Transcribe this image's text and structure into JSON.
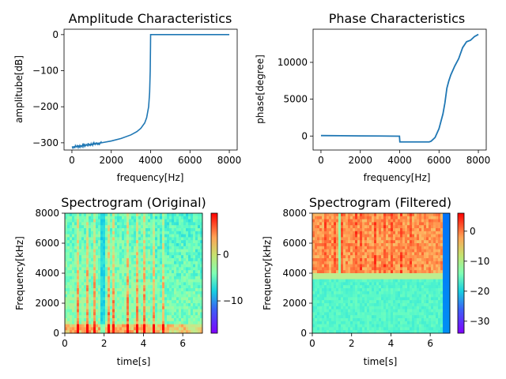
{
  "chart_data": [
    {
      "type": "line",
      "title": "Amplitude Characteristics",
      "xlabel": "frequency[Hz]",
      "ylabel": "amplitube[dB]",
      "xlim": [
        -400,
        8400
      ],
      "ylim": [
        -320,
        15
      ],
      "xticks": [
        0,
        2000,
        4000,
        6000,
        8000
      ],
      "yticks": [
        0,
        -100,
        -200,
        -300
      ],
      "color": "#1f77b4",
      "x": [
        0,
        200,
        500,
        1000,
        1500,
        2000,
        2500,
        3000,
        3300,
        3500,
        3700,
        3800,
        3900,
        3950,
        3980,
        3995,
        4000,
        5000,
        6000,
        7000,
        8000
      ],
      "y": [
        -312,
        -310,
        -308,
        -304,
        -300,
        -295,
        -288,
        -278,
        -269,
        -260,
        -245,
        -230,
        -200,
        -160,
        -100,
        -30,
        0,
        0,
        0,
        0,
        0
      ]
    },
    {
      "type": "line",
      "title": "Phase Characteristics",
      "xlabel": "frequency[Hz]",
      "ylabel": "phase[degree]",
      "xlim": [
        -400,
        8400
      ],
      "ylim": [
        -1900,
        14500
      ],
      "xticks": [
        0,
        2000,
        4000,
        6000,
        8000
      ],
      "yticks": [
        0,
        5000,
        10000
      ],
      "color": "#1f77b4",
      "x": [
        0,
        1000,
        2000,
        3000,
        3990,
        4010,
        5000,
        5500,
        5600,
        5800,
        6000,
        6200,
        6300,
        6400,
        6500,
        6600,
        6800,
        7000,
        7200,
        7400,
        7600,
        7800,
        8000
      ],
      "y": [
        60,
        40,
        20,
        0,
        -20,
        -800,
        -800,
        -800,
        -700,
        -200,
        1000,
        3000,
        4500,
        6500,
        7500,
        8300,
        9500,
        10500,
        12000,
        12800,
        13000,
        13500,
        13800
      ]
    },
    {
      "type": "heatmap",
      "title": "Spectrogram (Original)",
      "xlabel": "time[s]",
      "ylabel": "Frequency[kHz]",
      "xlim": [
        0,
        7
      ],
      "ylim": [
        0,
        8000
      ],
      "xticks": [
        0,
        2,
        4,
        6
      ],
      "yticks": [
        0,
        2000,
        4000,
        6000,
        8000
      ],
      "colormap": "rainbow",
      "colorbar_range": [
        -17,
        9
      ],
      "colorbar_ticks": [
        0,
        -10
      ]
    },
    {
      "type": "heatmap",
      "title": "Spectrogram (Filtered)",
      "xlabel": "time[s]",
      "ylabel": "Frequency[kHz]",
      "xlim": [
        0,
        7
      ],
      "ylim": [
        0,
        8000
      ],
      "xticks": [
        0,
        2,
        4,
        6
      ],
      "yticks": [
        0,
        2000,
        4000,
        6000,
        8000
      ],
      "colormap": "rainbow",
      "colorbar_range": [
        -34,
        6
      ],
      "colorbar_ticks": [
        0,
        -10,
        -20,
        -30
      ]
    }
  ]
}
